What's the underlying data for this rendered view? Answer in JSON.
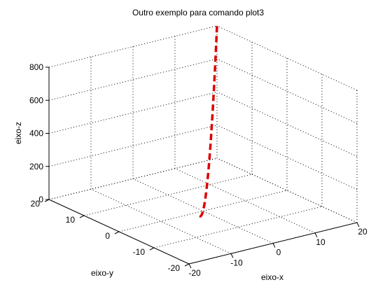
{
  "chart_data": {
    "type": "line",
    "projection": "3d",
    "title": "Outro exemplo para comando plot3",
    "xlabel": "eixo-x",
    "ylabel": "eixo-y",
    "zlabel": "eixo-z",
    "xlim": [
      -20,
      20
    ],
    "ylim": [
      -20,
      20
    ],
    "zlim": [
      0,
      800
    ],
    "xticks": [
      "-20",
      "-10",
      "0",
      "10",
      "20"
    ],
    "yticks": [
      "-20",
      "-10",
      "0",
      "10",
      "20"
    ],
    "zticks": [
      "0",
      "200",
      "400",
      "600",
      "800"
    ],
    "grid": true,
    "line_style": "dashed",
    "line_color": "#dd0000",
    "series": [
      {
        "x": [
          -5,
          -4,
          -3,
          -2,
          -1,
          0,
          1,
          2,
          3,
          4,
          5,
          6,
          7,
          8,
          9,
          10,
          11,
          12,
          13,
          14,
          15,
          16,
          17,
          18,
          19,
          20
        ],
        "y": [
          -5,
          -4,
          -3,
          -2,
          -1,
          0,
          1,
          2,
          3,
          4,
          5,
          6,
          7,
          8,
          9,
          10,
          11,
          12,
          13,
          14,
          15,
          16,
          17,
          18,
          19,
          20
        ],
        "z": [
          50,
          32,
          18,
          8,
          2,
          0,
          2,
          8,
          18,
          32,
          50,
          72,
          98,
          128,
          162,
          200,
          242,
          288,
          338,
          392,
          450,
          512,
          578,
          648,
          722,
          800
        ]
      }
    ]
  }
}
